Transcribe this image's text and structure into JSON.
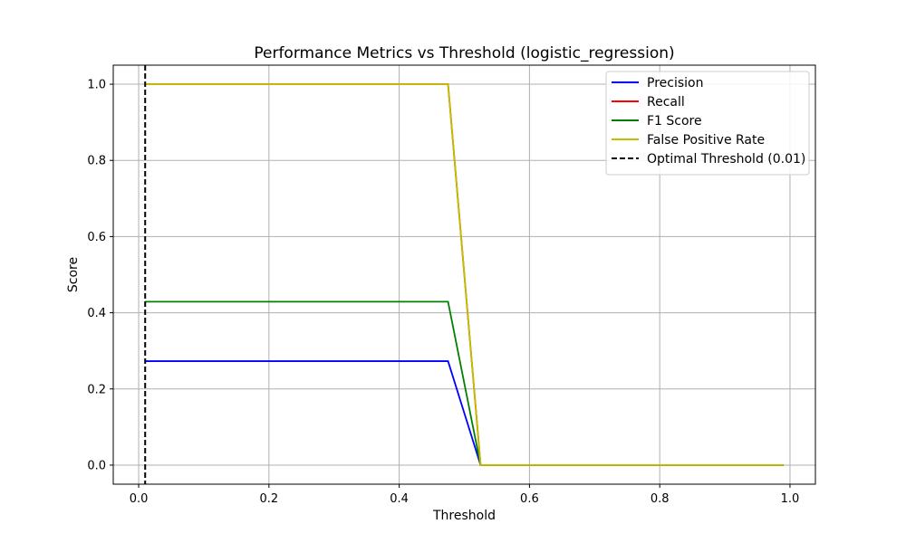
{
  "chart_data": {
    "type": "line",
    "title": "Performance Metrics vs Threshold (logistic_regression)",
    "xlabel": "Threshold",
    "ylabel": "Score",
    "xlim": [
      -0.039,
      1.039
    ],
    "ylim": [
      -0.05,
      1.05
    ],
    "x_ticks": [
      0.0,
      0.2,
      0.4,
      0.6,
      0.8,
      1.0
    ],
    "x_tick_labels": [
      "0.0",
      "0.2",
      "0.4",
      "0.6",
      "0.8",
      "1.0"
    ],
    "y_ticks": [
      0.0,
      0.2,
      0.4,
      0.6,
      0.8,
      1.0
    ],
    "y_tick_labels": [
      "0.0",
      "0.2",
      "0.4",
      "0.6",
      "0.8",
      "1.0"
    ],
    "grid": true,
    "legend_position": "upper right",
    "series": [
      {
        "name": "Precision",
        "color": "#0000ff",
        "style": "solid",
        "x": [
          0.01,
          0.475,
          0.525,
          0.99
        ],
        "y": [
          0.273,
          0.273,
          0.0,
          0.0
        ]
      },
      {
        "name": "Recall",
        "color": "#ff0000",
        "style": "solid",
        "x": [
          0.01,
          0.475,
          0.525,
          0.99
        ],
        "y": [
          1.0,
          1.0,
          0.0,
          0.0
        ]
      },
      {
        "name": "F1 Score",
        "color": "#008000",
        "style": "solid",
        "x": [
          0.01,
          0.475,
          0.525,
          0.99
        ],
        "y": [
          0.429,
          0.429,
          0.0,
          0.0
        ]
      },
      {
        "name": "False Positive Rate",
        "color": "#bfbf00",
        "style": "solid",
        "x": [
          0.01,
          0.475,
          0.525,
          0.99
        ],
        "y": [
          1.0,
          1.0,
          0.0,
          0.0
        ]
      }
    ],
    "vertical_lines": [
      {
        "name": "Optimal Threshold (0.01)",
        "x": 0.01,
        "color": "#000000",
        "style": "dashed"
      }
    ]
  }
}
